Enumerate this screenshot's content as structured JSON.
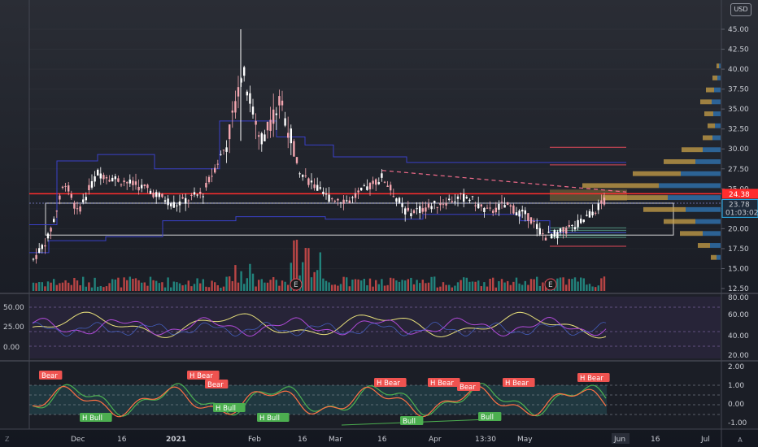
{
  "currency": "USD",
  "logo_text": "Z",
  "settings_text": "A",
  "price_axis": {
    "labels": [
      "45.00",
      "42.50",
      "40.00",
      "37.50",
      "35.00",
      "32.50",
      "30.00",
      "27.50",
      "25.00",
      "22.50",
      "20.00",
      "17.50",
      "15.00",
      "12.50"
    ],
    "last_price": "24.38",
    "prev_price": "23.78",
    "countdown": "01:03:02"
  },
  "rsi_axis": {
    "left_labels": [
      "50.00",
      "25.00",
      "0.00"
    ],
    "right_labels": [
      "80.00",
      "60.00",
      "40.00",
      "20.00"
    ]
  },
  "osc_axis": {
    "labels": [
      "2.00",
      "1.00",
      "0.00",
      "-1.00"
    ]
  },
  "time_axis": [
    {
      "label": "Dec",
      "bold": false
    },
    {
      "label": "16",
      "bold": false
    },
    {
      "label": "2021",
      "bold": true
    },
    {
      "label": "Feb",
      "bold": false
    },
    {
      "label": "16",
      "bold": false
    },
    {
      "label": "Mar",
      "bold": false
    },
    {
      "label": "16",
      "bold": false
    },
    {
      "label": "Apr",
      "bold": false
    },
    {
      "label": "13:30",
      "bold": false
    },
    {
      "label": "May",
      "bold": false
    },
    {
      "label": "Jun",
      "bold": false
    },
    {
      "label": "16",
      "bold": false
    },
    {
      "label": "Jul",
      "bold": false
    }
  ],
  "earnings_markers": [
    "E",
    "E"
  ],
  "divergence_tags": [
    {
      "label": "Bear",
      "type": "bear"
    },
    {
      "label": "H Bear",
      "type": "bear"
    },
    {
      "label": "Bear",
      "type": "bear"
    },
    {
      "label": "H Bear",
      "type": "bear"
    },
    {
      "label": "H Bear",
      "type": "bear"
    },
    {
      "label": "Bear",
      "type": "bear"
    },
    {
      "label": "H Bear",
      "type": "bear"
    },
    {
      "label": "H Bear",
      "type": "bear"
    },
    {
      "label": "H Bull",
      "type": "bull"
    },
    {
      "label": "H Bull",
      "type": "bull"
    },
    {
      "label": "H Bull",
      "type": "bull"
    },
    {
      "label": "Bull",
      "type": "bull"
    },
    {
      "label": "Bull",
      "type": "bull"
    }
  ],
  "colors": {
    "bull_candle": "#ffffff",
    "bear_candle": "#f4a6b0",
    "price_line": "#ff2d2d",
    "vpvr_up": "#c8a048",
    "vpvr_down": "#2f6fa8",
    "tag_bear": "#ef5350",
    "tag_bull": "#4caf50",
    "countdown_bg": "#2962ff"
  }
}
